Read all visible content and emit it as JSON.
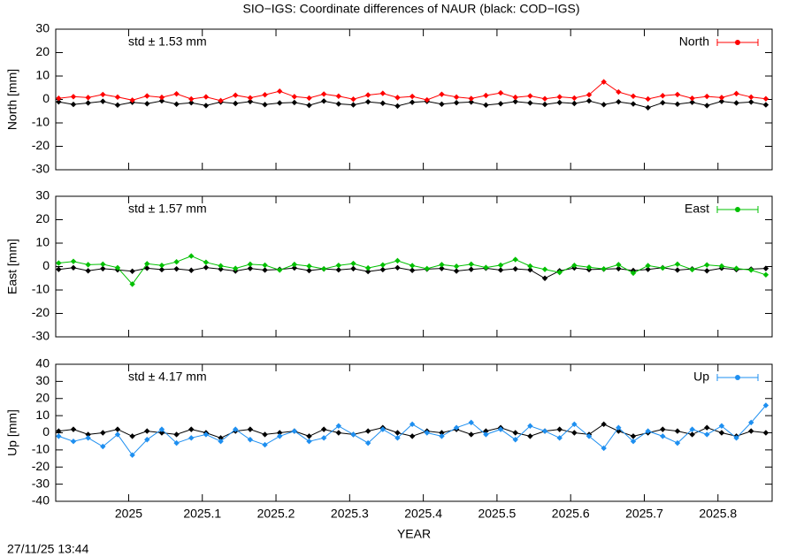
{
  "title": "SIO−IGS: Coordinate differences of NAUR (black: COD−IGS)",
  "timestamp": "27/11/25 13:44",
  "chart_data": [
    {
      "type": "line",
      "ylabel": "North [mm]",
      "annotation": "std ± 1.53 mm",
      "xlim": [
        2024.901,
        2025.8735
      ],
      "ylim": [
        -30,
        30
      ],
      "yticks": [
        -30,
        -20,
        -10,
        0,
        10,
        20,
        30
      ],
      "x": [
        2024.905,
        2024.925,
        2024.945,
        2024.965,
        2024.985,
        2025.005,
        2025.025,
        2025.045,
        2025.065,
        2025.085,
        2025.105,
        2025.125,
        2025.145,
        2025.165,
        2025.185,
        2025.205,
        2025.225,
        2025.245,
        2025.265,
        2025.285,
        2025.305,
        2025.325,
        2025.345,
        2025.365,
        2025.385,
        2025.405,
        2025.425,
        2025.445,
        2025.465,
        2025.485,
        2025.505,
        2025.525,
        2025.545,
        2025.565,
        2025.585,
        2025.605,
        2025.625,
        2025.645,
        2025.665,
        2025.685,
        2025.705,
        2025.725,
        2025.745,
        2025.765,
        2025.785,
        2025.805,
        2025.825,
        2025.845,
        2025.865
      ],
      "series": [
        {
          "name": "North",
          "color": "#ff0000",
          "values": [
            0.5,
            1.2,
            0.8,
            2.1,
            1.0,
            -0.3,
            1.5,
            0.9,
            2.4,
            0.2,
            1.1,
            -0.5,
            1.8,
            0.7,
            2.0,
            3.5,
            1.2,
            0.6,
            2.3,
            1.4,
            0.1,
            1.9,
            2.6,
            0.8,
            1.3,
            -0.2,
            2.2,
            1.0,
            0.4,
            1.7,
            2.8,
            0.9,
            1.5,
            0.3,
            1.1,
            0.6,
            2.0,
            7.5,
            3.2,
            1.4,
            0.2,
            1.6,
            2.1,
            0.5,
            1.3,
            0.8,
            2.5,
            1.0,
            0.3
          ]
        },
        {
          "color": "#000000",
          "values": [
            -1.0,
            -2.1,
            -1.5,
            -0.8,
            -2.4,
            -1.2,
            -1.8,
            -0.6,
            -2.0,
            -1.4,
            -2.6,
            -1.1,
            -1.7,
            -0.9,
            -2.2,
            -1.5,
            -1.3,
            -2.5,
            -0.7,
            -1.9,
            -2.3,
            -1.0,
            -1.6,
            -2.8,
            -1.2,
            -0.8,
            -2.0,
            -1.4,
            -1.1,
            -2.4,
            -1.8,
            -0.9,
            -1.5,
            -2.1,
            -1.3,
            -1.7,
            -0.6,
            -2.2,
            -1.0,
            -1.9,
            -3.5,
            -1.4,
            -2.0,
            -1.2,
            -2.6,
            -0.8,
            -1.5,
            -1.1,
            -2.3
          ]
        }
      ]
    },
    {
      "type": "line",
      "ylabel": "East [mm]",
      "annotation": "std ± 1.57 mm",
      "xlim": [
        2024.901,
        2025.8735
      ],
      "ylim": [
        -30,
        30
      ],
      "yticks": [
        -30,
        -20,
        -10,
        0,
        10,
        20,
        30
      ],
      "x": [
        2024.905,
        2024.925,
        2024.945,
        2024.965,
        2024.985,
        2025.005,
        2025.025,
        2025.045,
        2025.065,
        2025.085,
        2025.105,
        2025.125,
        2025.145,
        2025.165,
        2025.185,
        2025.205,
        2025.225,
        2025.245,
        2025.265,
        2025.285,
        2025.305,
        2025.325,
        2025.345,
        2025.365,
        2025.385,
        2025.405,
        2025.425,
        2025.445,
        2025.465,
        2025.485,
        2025.505,
        2025.525,
        2025.545,
        2025.565,
        2025.585,
        2025.605,
        2025.625,
        2025.645,
        2025.665,
        2025.685,
        2025.705,
        2025.725,
        2025.745,
        2025.765,
        2025.785,
        2025.805,
        2025.825,
        2025.845,
        2025.865
      ],
      "series": [
        {
          "name": "East",
          "color": "#00c000",
          "values": [
            1.5,
            2.2,
            0.8,
            1.0,
            -0.5,
            -7.5,
            1.2,
            0.5,
            2.0,
            4.5,
            1.8,
            0.3,
            -0.8,
            1.0,
            0.6,
            -1.5,
            0.9,
            0.2,
            -1.0,
            0.5,
            1.3,
            -0.6,
            0.7,
            2.5,
            0.4,
            -0.9,
            0.8,
            0.1,
            1.0,
            -0.4,
            0.6,
            3.0,
            0.2,
            -1.2,
            -2.5,
            0.5,
            -0.3,
            -1.0,
            0.8,
            -2.8,
            0.4,
            -0.6,
            1.0,
            -1.3,
            0.7,
            0.2,
            -0.8,
            -1.5,
            -3.5
          ]
        },
        {
          "color": "#000000",
          "values": [
            -1.2,
            -0.5,
            -1.8,
            -0.9,
            -1.4,
            -2.0,
            -0.7,
            -1.3,
            -1.0,
            -1.6,
            -0.4,
            -1.1,
            -1.9,
            -0.8,
            -1.5,
            -1.2,
            -0.6,
            -1.7,
            -1.0,
            -1.4,
            -0.9,
            -2.1,
            -1.3,
            -0.5,
            -1.6,
            -1.1,
            -0.8,
            -1.9,
            -1.2,
            -0.7,
            -1.5,
            -1.0,
            -1.4,
            -5.0,
            -1.8,
            -0.6,
            -1.3,
            -1.1,
            -0.9,
            -1.7,
            -1.2,
            -0.5,
            -1.5,
            -1.0,
            -1.8,
            -0.7,
            -1.3,
            -1.1,
            -0.8
          ]
        }
      ]
    },
    {
      "type": "line",
      "ylabel": "Up [mm]",
      "annotation": "std ± 4.17 mm",
      "xlabel": "YEAR",
      "xlim": [
        2024.901,
        2025.8735
      ],
      "ylim": [
        -40,
        40
      ],
      "yticks": [
        -40,
        -30,
        -20,
        -10,
        0,
        10,
        20,
        30,
        40
      ],
      "xticks": [
        2025,
        2025.1,
        2025.2,
        2025.3,
        2025.4,
        2025.5,
        2025.6,
        2025.7,
        2025.8
      ],
      "x": [
        2024.905,
        2024.925,
        2024.945,
        2024.965,
        2024.985,
        2025.005,
        2025.025,
        2025.045,
        2025.065,
        2025.085,
        2025.105,
        2025.125,
        2025.145,
        2025.165,
        2025.185,
        2025.205,
        2025.225,
        2025.245,
        2025.265,
        2025.285,
        2025.305,
        2025.325,
        2025.345,
        2025.365,
        2025.385,
        2025.405,
        2025.425,
        2025.445,
        2025.465,
        2025.485,
        2025.505,
        2025.525,
        2025.545,
        2025.565,
        2025.585,
        2025.605,
        2025.625,
        2025.645,
        2025.665,
        2025.685,
        2025.705,
        2025.725,
        2025.745,
        2025.765,
        2025.785,
        2025.805,
        2025.825,
        2025.845,
        2025.865
      ],
      "series": [
        {
          "name": "Up",
          "color": "#1e8ff0",
          "values": [
            -2,
            -5,
            -3,
            -8,
            -1,
            -13,
            -4,
            2,
            -6,
            -3,
            -1,
            -5,
            2,
            -4,
            -7,
            -2,
            1,
            -5,
            -3,
            4,
            -1,
            -6,
            2,
            -3,
            5,
            0,
            -2,
            3,
            6,
            -1,
            2,
            -4,
            4,
            1,
            -3,
            5,
            -2,
            -9,
            3,
            -5,
            1,
            -2,
            -6,
            2,
            -1,
            4,
            -3,
            6,
            16
          ]
        },
        {
          "color": "#000000",
          "values": [
            1,
            2,
            -1,
            0,
            2,
            -2,
            1,
            0,
            -1,
            2,
            0,
            -3,
            1,
            2,
            -1,
            0,
            1,
            -2,
            2,
            0,
            -1,
            1,
            3,
            0,
            -2,
            1,
            0,
            2,
            -1,
            1,
            3,
            0,
            -2,
            1,
            2,
            0,
            -1,
            5,
            1,
            -2,
            0,
            2,
            1,
            -1,
            3,
            0,
            -2,
            1,
            0
          ]
        }
      ]
    }
  ]
}
